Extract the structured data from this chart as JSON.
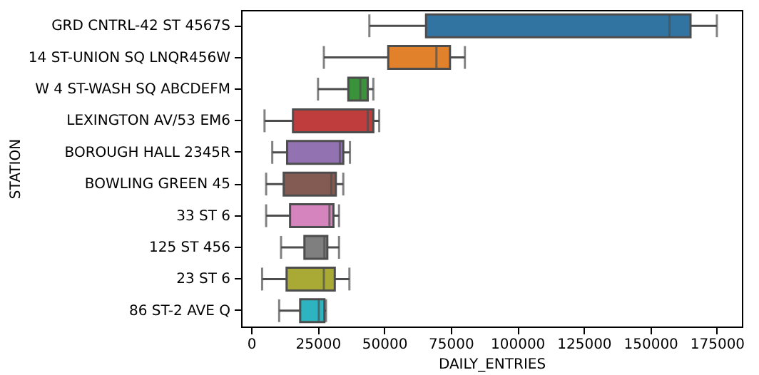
{
  "chart_data": {
    "type": "box",
    "orientation": "horizontal",
    "xlabel": "DAILY_ENTRIES",
    "ylabel": "STATION",
    "categories": [
      "GRD CNTRL-42 ST 4567S",
      "14 ST-UNION SQ LNQR456W",
      "W 4 ST-WASH SQ ABCDEFM",
      "LEXINGTON AV/53 EM6",
      "BOROUGH HALL 2345R",
      "BOWLING GREEN 45",
      "33 ST 6",
      "125 ST 456",
      "23 ST 6",
      "86 ST-2 AVE Q"
    ],
    "boxes": [
      {
        "low": 44400,
        "q1": 65700,
        "median": 157200,
        "q3": 165100,
        "high": 175000
      },
      {
        "low": 27300,
        "q1": 51500,
        "median": 69600,
        "q3": 74700,
        "high": 80300
      },
      {
        "low": 25100,
        "q1": 36500,
        "median": 41000,
        "q3": 43800,
        "high": 45900
      },
      {
        "low": 5000,
        "q1": 15700,
        "median": 43800,
        "q3": 45900,
        "high": 48100
      },
      {
        "low": 7900,
        "q1": 13500,
        "median": 33300,
        "q3": 34600,
        "high": 37100
      },
      {
        "low": 5600,
        "q1": 12200,
        "median": 30100,
        "q3": 31800,
        "high": 34600
      },
      {
        "low": 5600,
        "q1": 14600,
        "median": 29400,
        "q3": 30900,
        "high": 33000
      },
      {
        "low": 11200,
        "q1": 20000,
        "median": 27500,
        "q3": 28600,
        "high": 33000
      },
      {
        "low": 4100,
        "q1": 13300,
        "median": 27300,
        "q3": 31400,
        "high": 36900
      },
      {
        "low": 10500,
        "q1": 18400,
        "median": 25400,
        "q3": 27500,
        "high": 28100
      }
    ],
    "colors": [
      "#3274a1",
      "#e1812c",
      "#3a923a",
      "#c03d3e",
      "#9372b2",
      "#845b53",
      "#d684bd",
      "#7f7f7f",
      "#a9aa35",
      "#2eb4c0"
    ],
    "xlim": [
      -3800,
      184400
    ],
    "xticks": [
      0,
      25000,
      50000,
      75000,
      100000,
      125000,
      150000,
      175000
    ],
    "grid": false
  }
}
